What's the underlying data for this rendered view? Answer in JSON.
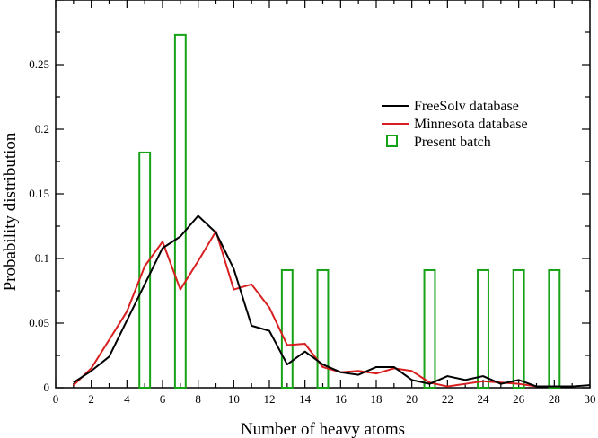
{
  "chart_data": {
    "type": "line",
    "title": "",
    "xlabel": "Number of heavy atoms",
    "ylabel": "Probability distribution",
    "xlim": [
      0,
      30
    ],
    "ylim": [
      0,
      0.3
    ],
    "x_major_ticks": [
      0,
      2,
      4,
      6,
      8,
      10,
      12,
      14,
      16,
      18,
      20,
      22,
      24,
      26,
      28,
      30
    ],
    "y_major_ticks": [
      0,
      0.05,
      0.1,
      0.15,
      0.2,
      0.25
    ],
    "y_tick_labels": [
      "0",
      "0.05",
      "0.1",
      "0.15",
      "0.2",
      "0.25"
    ],
    "grid": false,
    "legend_position": "upper-right",
    "series": [
      {
        "name": "FreeSolv database",
        "kind": "line",
        "color": "#000000",
        "x": [
          1,
          2,
          3,
          4,
          5,
          6,
          7,
          8,
          9,
          10,
          11,
          12,
          13,
          14,
          15,
          16,
          17,
          18,
          19,
          20,
          21,
          22,
          23,
          24,
          25,
          26,
          27,
          28,
          29,
          30
        ],
        "y": [
          0.004,
          0.013,
          0.024,
          0.052,
          0.08,
          0.108,
          0.117,
          0.133,
          0.12,
          0.092,
          0.048,
          0.044,
          0.018,
          0.028,
          0.018,
          0.012,
          0.01,
          0.016,
          0.016,
          0.006,
          0.003,
          0.009,
          0.006,
          0.009,
          0.003,
          0.006,
          0.001,
          0.001,
          0.001,
          0.002
        ]
      },
      {
        "name": "Minnesota database",
        "kind": "line",
        "color": "#d81e1e",
        "x": [
          1,
          2,
          3,
          4,
          5,
          6,
          7,
          8,
          9,
          10,
          11,
          12,
          13,
          14,
          15,
          16,
          17,
          18,
          19,
          20,
          21,
          22,
          23,
          24,
          25,
          26,
          27,
          28,
          29
        ],
        "y": [
          0.002,
          0.015,
          0.037,
          0.059,
          0.094,
          0.113,
          0.076,
          0.098,
          0.121,
          0.076,
          0.08,
          0.062,
          0.033,
          0.034,
          0.016,
          0.012,
          0.013,
          0.011,
          0.015,
          0.013,
          0.004,
          0.001,
          0.003,
          0.005,
          0.004,
          0.003,
          0.001,
          0.001,
          0.001
        ]
      },
      {
        "name": "Present batch",
        "kind": "bar",
        "color": "#17a117",
        "x": [
          5,
          7,
          13,
          15,
          21,
          24,
          26,
          28
        ],
        "y": [
          0.182,
          0.273,
          0.091,
          0.091,
          0.091,
          0.091,
          0.091,
          0.091
        ]
      }
    ]
  }
}
